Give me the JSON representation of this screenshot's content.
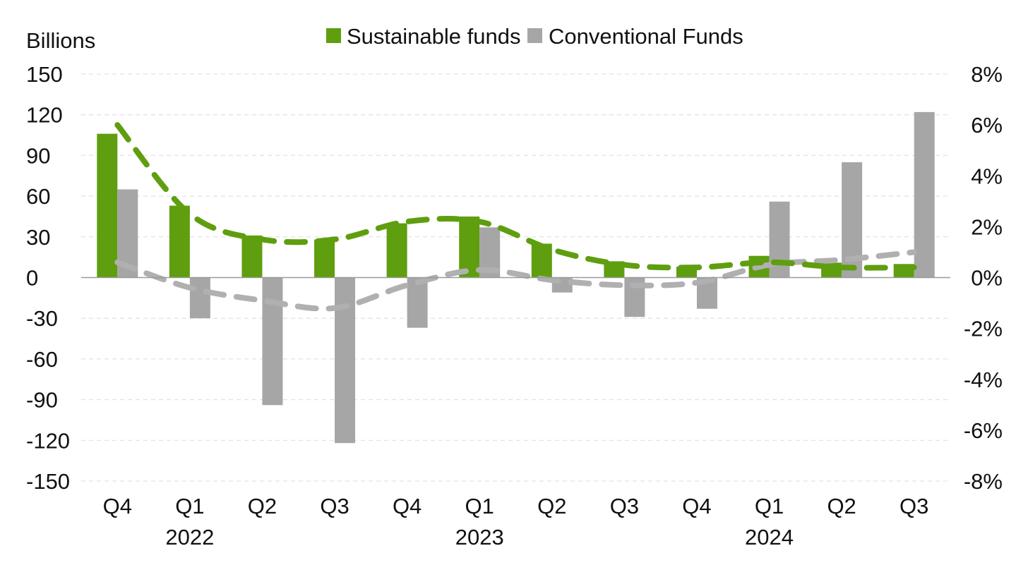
{
  "chart_data": {
    "type": "bar",
    "ylabel": "Billions",
    "legend": [
      "Sustainable funds",
      "Conventional Funds"
    ],
    "legend_position": "top-center",
    "categories": [
      "Q4",
      "Q1",
      "Q2",
      "Q3",
      "Q4",
      "Q1",
      "Q2",
      "Q3",
      "Q4",
      "Q1",
      "Q2",
      "Q3"
    ],
    "year_labels": [
      {
        "label": "2022",
        "index": 1
      },
      {
        "label": "2023",
        "index": 5
      },
      {
        "label": "2024",
        "index": 9
      }
    ],
    "series": [
      {
        "name": "Sustainable funds",
        "color": "#5f9e0f",
        "axis": "left",
        "values": [
          106,
          53,
          31,
          28,
          40,
          45,
          25,
          12,
          8,
          16,
          11,
          10
        ]
      },
      {
        "name": "Conventional Funds",
        "color": "#a6a6a6",
        "axis": "left",
        "values": [
          65,
          -30,
          -94,
          -122,
          -37,
          37,
          -11,
          -29,
          -23,
          56,
          85,
          122
        ]
      }
    ],
    "lines": [
      {
        "series": "Sustainable funds",
        "style": "dashed",
        "color": "#5f9e0f",
        "axis": "right",
        "values": [
          6.0,
          2.5,
          1.5,
          1.5,
          2.2,
          2.2,
          1.1,
          0.5,
          0.4,
          0.6,
          0.4,
          0.4
        ]
      },
      {
        "series": "Conventional Funds",
        "style": "dashed",
        "color": "#b0b0b0",
        "axis": "right",
        "values": [
          0.6,
          -0.4,
          -0.9,
          -1.2,
          -0.3,
          0.3,
          -0.1,
          -0.3,
          -0.2,
          0.5,
          0.7,
          1.0
        ]
      }
    ],
    "ylim": [
      -150,
      150
    ],
    "yticks": [
      "150",
      "120",
      "90",
      "60",
      "30",
      "0",
      "-30",
      "-60",
      "-90",
      "-120",
      "-150"
    ],
    "y2lim": [
      -8,
      8
    ],
    "y2ticks": [
      "8%",
      "6%",
      "4%",
      "2%",
      "0%",
      "-2%",
      "-4%",
      "-6%",
      "-8%"
    ],
    "grid": true
  }
}
